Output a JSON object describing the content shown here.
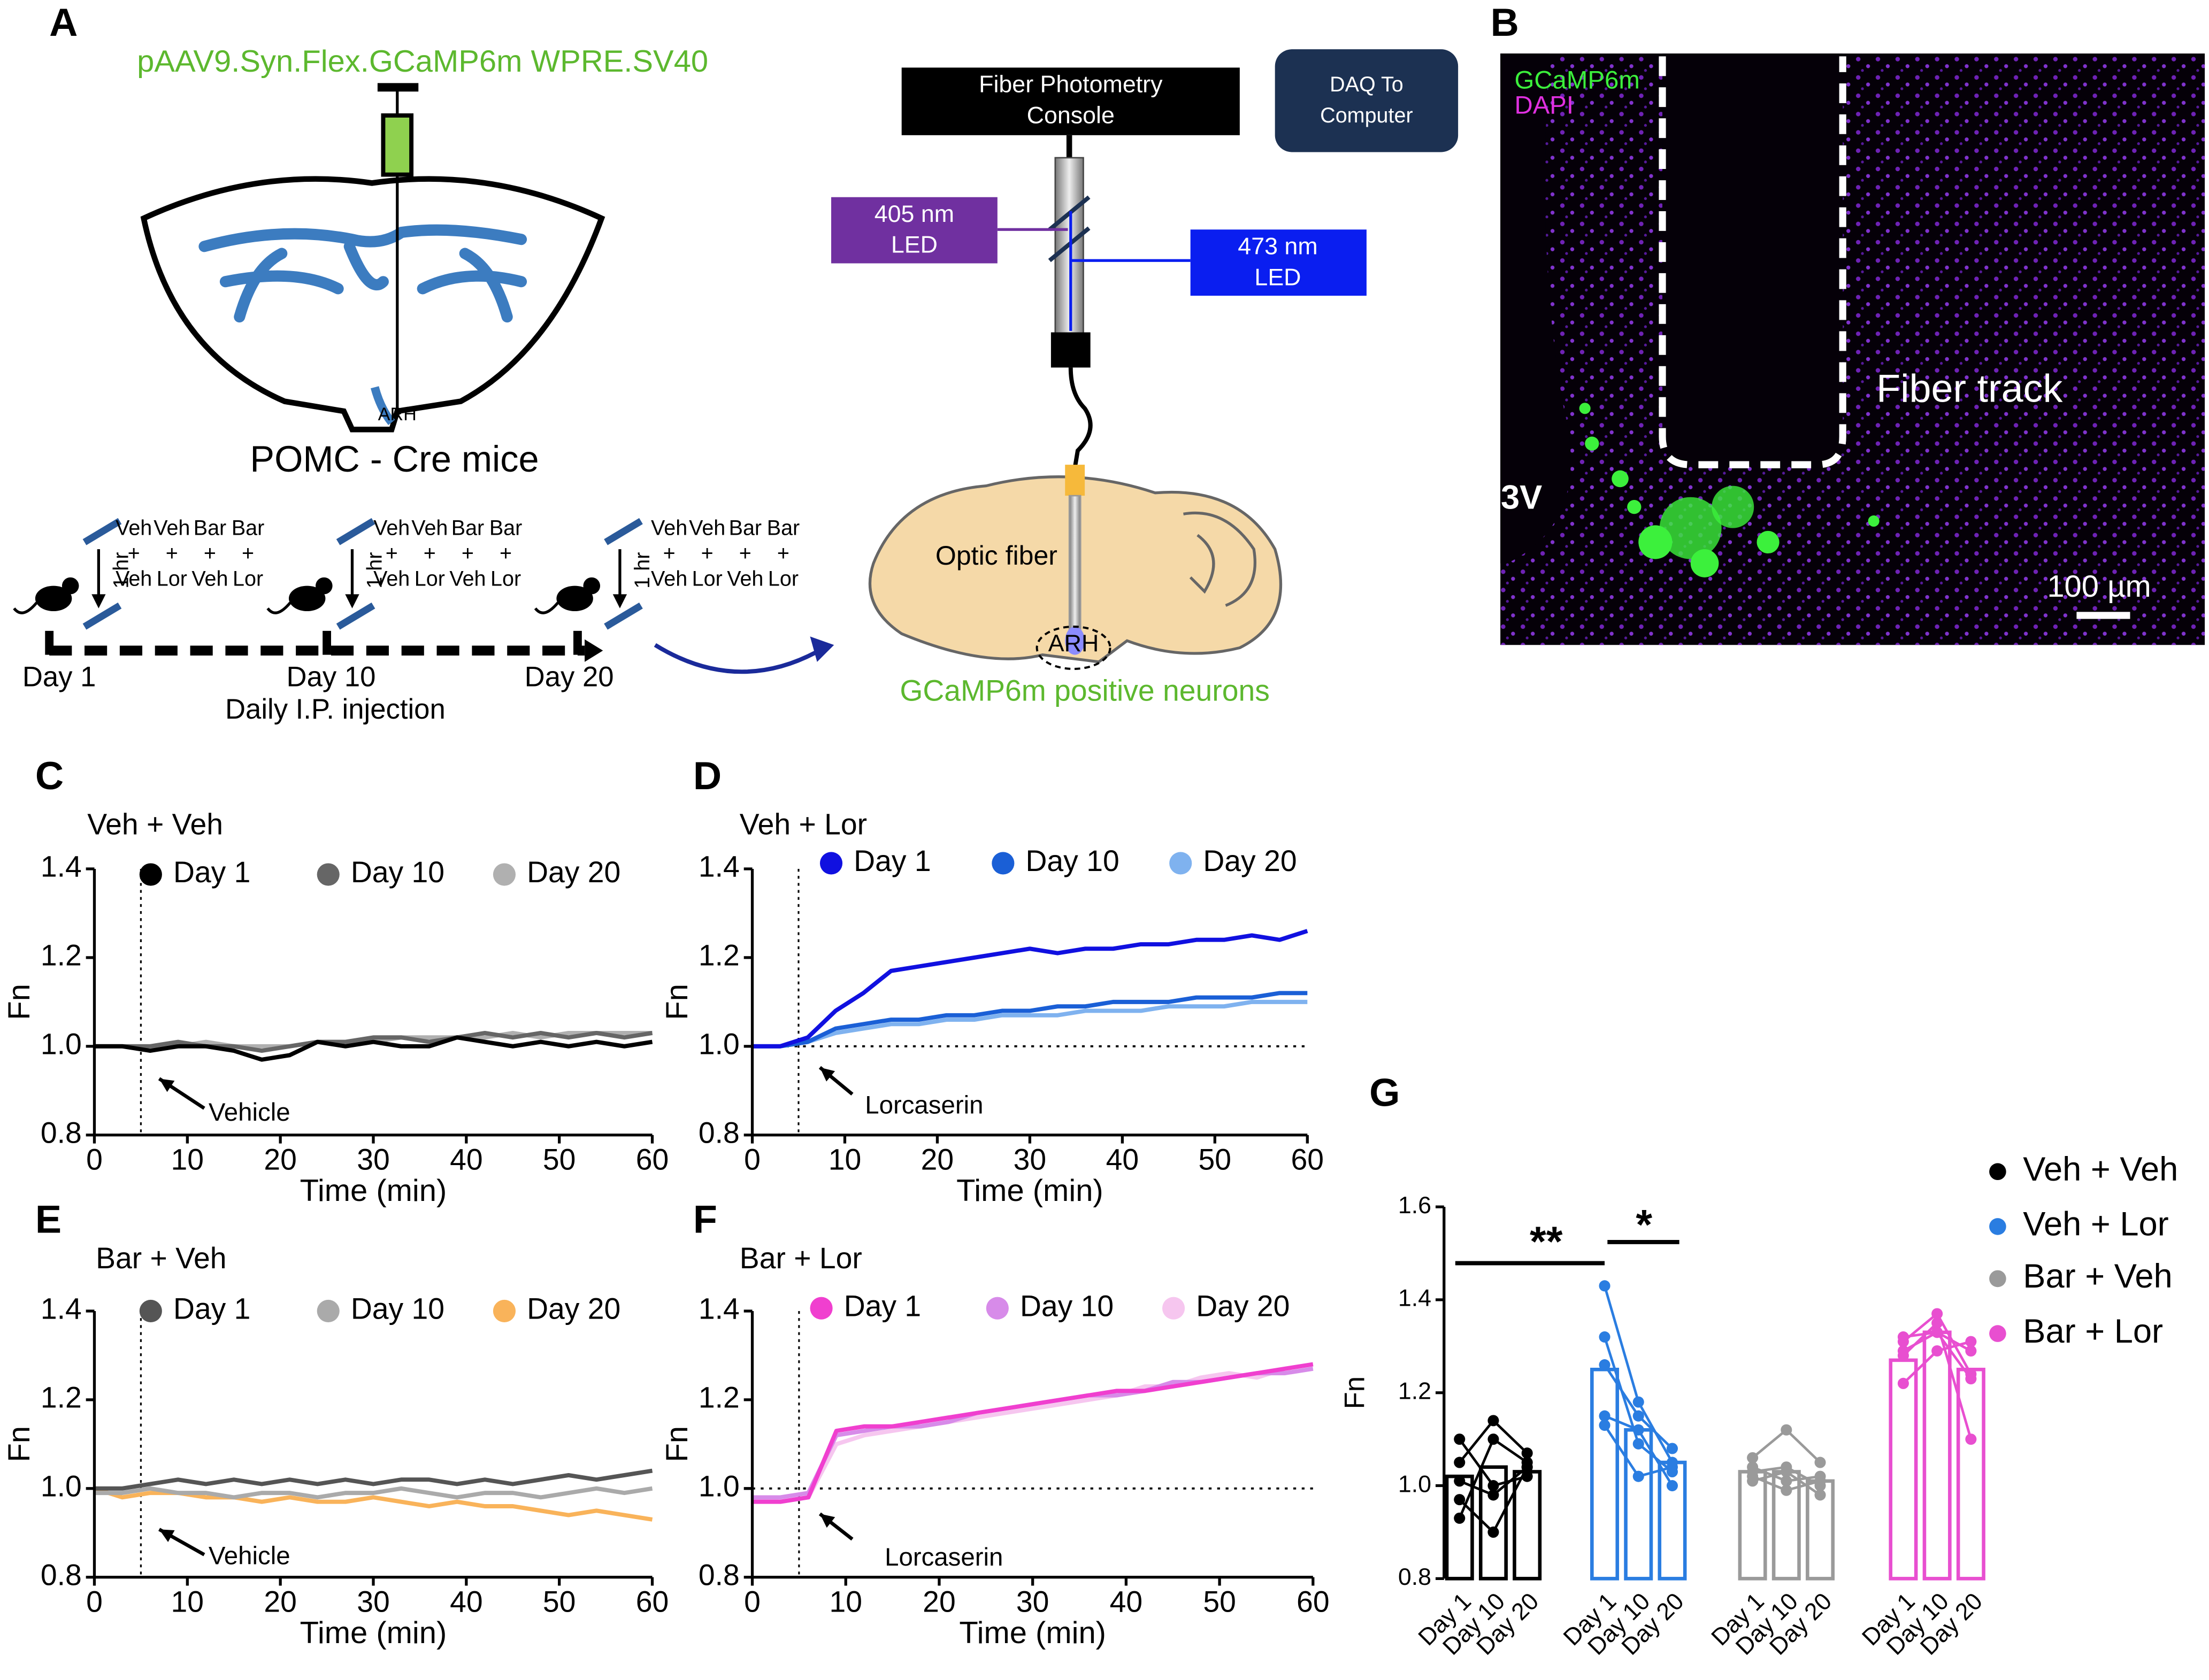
{
  "diagram": {
    "panel": "A",
    "virus": "pAAV9.Syn.Flex.GCaMP6m WPRE.SV40",
    "arh": "ARH",
    "mice": "POMC - Cre mice",
    "treatments_top": [
      "Veh",
      "Veh",
      "Bar",
      "Bar"
    ],
    "plus": "+",
    "treatments_bottom": [
      "Veh",
      "Lor",
      "Veh",
      "Lor"
    ],
    "interval": "1 hr",
    "days": [
      "Day 1",
      "Day 10",
      "Day 20"
    ],
    "injection": "Daily I.P. injection",
    "console": [
      "Fiber Photometry",
      "Console"
    ],
    "daq": [
      "DAQ To",
      "Computer"
    ],
    "led405": [
      "405 nm",
      "LED"
    ],
    "led473": [
      "473 nm",
      "LED"
    ],
    "optic": "Optic fiber",
    "neurons": "GCaMP6m positive neurons"
  },
  "image": {
    "panel": "B",
    "gcamp": "GCaMP6m",
    "dapi": "DAPI",
    "fiber_track": "Fiber track",
    "ventricle": "3V",
    "scale": "100 µm"
  },
  "chart_data": [
    {
      "type": "line",
      "panel": "C",
      "title": "Veh + Veh",
      "x_label": "Time (min)",
      "y_label": "Fn",
      "annotation": "Vehicle",
      "marker_x": 5,
      "x": [
        0,
        3,
        6,
        9,
        12,
        15,
        18,
        21,
        24,
        27,
        30,
        33,
        36,
        39,
        42,
        45,
        48,
        51,
        54,
        57,
        60
      ],
      "xlim": [
        0,
        60
      ],
      "xticks": [
        0,
        10,
        20,
        30,
        40,
        50,
        60
      ],
      "ylim": [
        0.8,
        1.4
      ],
      "yticks": [
        0.8,
        {
          "value": 1,
          "label": "1.0"
        },
        1.2,
        1.4
      ],
      "series": [
        {
          "name": "Day 1",
          "color": "#000000",
          "values": [
            1.0,
            1.0,
            0.99,
            1.0,
            1.0,
            0.99,
            0.97,
            0.98,
            1.01,
            1.0,
            1.01,
            1.0,
            1.0,
            1.02,
            1.01,
            1.0,
            1.01,
            1.0,
            1.01,
            1.0,
            1.01
          ]
        },
        {
          "name": "Day 10",
          "color": "#666666",
          "values": [
            1.0,
            1.0,
            1.0,
            1.01,
            1.0,
            1.0,
            0.99,
            1.0,
            1.01,
            1.01,
            1.02,
            1.02,
            1.01,
            1.02,
            1.03,
            1.02,
            1.03,
            1.02,
            1.03,
            1.02,
            1.03
          ]
        },
        {
          "name": "Day 20",
          "color": "#b0b0b0",
          "values": [
            1.0,
            1.0,
            1.0,
            1.0,
            1.01,
            1.0,
            1.0,
            1.0,
            1.01,
            1.01,
            1.01,
            1.02,
            1.02,
            1.02,
            1.02,
            1.03,
            1.02,
            1.03,
            1.03,
            1.03,
            1.03
          ]
        }
      ]
    },
    {
      "type": "line",
      "panel": "D",
      "title": "Veh + Lor",
      "x_label": "Time (min)",
      "y_label": "Fn",
      "annotation": "Lorcaserin",
      "marker_x": 5,
      "reference_y": 1,
      "x": [
        0,
        3,
        6,
        9,
        12,
        15,
        18,
        21,
        24,
        27,
        30,
        33,
        36,
        39,
        42,
        45,
        48,
        51,
        54,
        57,
        60
      ],
      "xlim": [
        0,
        60
      ],
      "xticks": [
        0,
        10,
        20,
        30,
        40,
        50,
        60
      ],
      "ylim": [
        0.8,
        1.4
      ],
      "yticks": [
        0.8,
        {
          "value": 1,
          "label": "1.0"
        },
        1.2,
        1.4
      ],
      "series": [
        {
          "name": "Day 1",
          "color": "#1010e0",
          "values": [
            1.0,
            1.0,
            1.02,
            1.08,
            1.12,
            1.17,
            1.18,
            1.19,
            1.2,
            1.21,
            1.22,
            1.21,
            1.22,
            1.22,
            1.23,
            1.23,
            1.24,
            1.24,
            1.25,
            1.24,
            1.26
          ]
        },
        {
          "name": "Day 10",
          "color": "#1a5fd6",
          "values": [
            1.0,
            1.0,
            1.01,
            1.04,
            1.05,
            1.06,
            1.06,
            1.07,
            1.07,
            1.08,
            1.08,
            1.09,
            1.09,
            1.1,
            1.1,
            1.1,
            1.11,
            1.11,
            1.11,
            1.12,
            1.12
          ]
        },
        {
          "name": "Day 20",
          "color": "#7fb2ef",
          "values": [
            1.0,
            1.0,
            1.01,
            1.03,
            1.04,
            1.05,
            1.05,
            1.06,
            1.06,
            1.07,
            1.07,
            1.07,
            1.08,
            1.08,
            1.08,
            1.09,
            1.09,
            1.09,
            1.1,
            1.1,
            1.1
          ]
        }
      ]
    },
    {
      "type": "line",
      "panel": "E",
      "title": "Bar + Veh",
      "x_label": "Time (min)",
      "y_label": "Fn",
      "annotation": "Vehicle",
      "marker_x": 5,
      "x": [
        0,
        3,
        6,
        9,
        12,
        15,
        18,
        21,
        24,
        27,
        30,
        33,
        36,
        39,
        42,
        45,
        48,
        51,
        54,
        57,
        60
      ],
      "xlim": [
        0,
        60
      ],
      "xticks": [
        0,
        10,
        20,
        30,
        40,
        50,
        60
      ],
      "ylim": [
        0.8,
        1.4
      ],
      "yticks": [
        0.8,
        {
          "value": 1,
          "label": "1.0"
        },
        1.2,
        1.4
      ],
      "series": [
        {
          "name": "Day 1",
          "color": "#555555",
          "values": [
            1.0,
            1.0,
            1.01,
            1.02,
            1.01,
            1.02,
            1.01,
            1.02,
            1.01,
            1.02,
            1.01,
            1.02,
            1.02,
            1.01,
            1.02,
            1.01,
            1.02,
            1.03,
            1.02,
            1.03,
            1.04
          ]
        },
        {
          "name": "Day 10",
          "color": "#aaaaaa",
          "values": [
            0.99,
            0.99,
            1.0,
            0.99,
            0.99,
            0.98,
            0.99,
            0.99,
            0.98,
            0.99,
            0.99,
            1.0,
            0.99,
            0.98,
            0.99,
            0.99,
            0.98,
            0.99,
            1.0,
            0.99,
            1.0
          ]
        },
        {
          "name": "Day 20",
          "color": "#f9b35a",
          "values": [
            1.0,
            0.98,
            0.99,
            0.99,
            0.98,
            0.98,
            0.97,
            0.98,
            0.97,
            0.97,
            0.98,
            0.97,
            0.96,
            0.97,
            0.96,
            0.96,
            0.95,
            0.94,
            0.95,
            0.94,
            0.93
          ]
        }
      ]
    },
    {
      "type": "line",
      "panel": "F",
      "title": "Bar + Lor",
      "x_label": "Time (min)",
      "y_label": "Fn",
      "annotation": "Lorcaserin",
      "marker_x": 5,
      "reference_y": 1,
      "x": [
        0,
        3,
        6,
        9,
        12,
        15,
        18,
        21,
        24,
        27,
        30,
        33,
        36,
        39,
        42,
        45,
        48,
        51,
        54,
        57,
        60
      ],
      "xlim": [
        0,
        60
      ],
      "xticks": [
        0,
        10,
        20,
        30,
        40,
        50,
        60
      ],
      "ylim": [
        0.8,
        1.4
      ],
      "yticks": [
        0.8,
        {
          "value": 1,
          "label": "1.0"
        },
        1.2,
        1.4
      ],
      "series": [
        {
          "name": "Day 1",
          "color": "#f03fcf",
          "values": [
            0.97,
            0.97,
            0.98,
            1.13,
            1.14,
            1.14,
            1.15,
            1.16,
            1.17,
            1.18,
            1.19,
            1.2,
            1.21,
            1.22,
            1.22,
            1.23,
            1.24,
            1.25,
            1.26,
            1.27,
            1.28
          ]
        },
        {
          "name": "Day 10",
          "color": "#d78be9",
          "values": [
            0.98,
            0.98,
            0.99,
            1.12,
            1.13,
            1.14,
            1.14,
            1.15,
            1.17,
            1.18,
            1.19,
            1.2,
            1.21,
            1.21,
            1.22,
            1.24,
            1.24,
            1.25,
            1.26,
            1.26,
            1.27
          ]
        },
        {
          "name": "Day 20",
          "color": "#f6c6ef",
          "values": [
            0.98,
            0.97,
            0.98,
            1.1,
            1.12,
            1.13,
            1.14,
            1.15,
            1.16,
            1.17,
            1.18,
            1.19,
            1.2,
            1.21,
            1.23,
            1.23,
            1.25,
            1.26,
            1.25,
            1.27,
            1.28
          ]
        }
      ]
    },
    {
      "type": "bar",
      "panel": "G",
      "y_label": "Fn",
      "categories": [
        "Day 1",
        "Day 10",
        "Day 20"
      ],
      "ylim": [
        0.8,
        1.6
      ],
      "yticks": [
        0.8,
        {
          "value": 1,
          "label": "1.0"
        },
        1.2,
        1.4,
        1.6
      ],
      "significance": [
        {
          "text": "**"
        },
        {
          "text": "*"
        }
      ],
      "series": [
        {
          "name": "Veh + Veh",
          "color": "#000000",
          "values": [
            1.02,
            1.04,
            1.03
          ],
          "subjects": [
            [
              0.93,
              1.1,
              1.05
            ],
            [
              0.97,
              0.9,
              1.04
            ],
            [
              1.05,
              1.14,
              1.07
            ],
            [
              1.1,
              1.0,
              1.02
            ],
            [
              1.01,
              0.98,
              1.04
            ]
          ]
        },
        {
          "name": "Veh + Lor",
          "color": "#2a7de1",
          "values": [
            1.25,
            1.12,
            1.05
          ],
          "subjects": [
            [
              1.43,
              1.18,
              1.05
            ],
            [
              1.32,
              1.09,
              1.03
            ],
            [
              1.26,
              1.15,
              1.08
            ],
            [
              1.15,
              1.12,
              1.0
            ],
            [
              1.13,
              1.02,
              1.04
            ]
          ]
        },
        {
          "name": "Bar + Veh",
          "color": "#9a9a9a",
          "values": [
            1.03,
            1.03,
            1.01
          ],
          "subjects": [
            [
              1.06,
              1.12,
              1.05
            ],
            [
              1.03,
              1.04,
              1.0
            ],
            [
              1.02,
              0.99,
              1.01
            ],
            [
              1.01,
              1.03,
              0.98
            ],
            [
              1.04,
              1.01,
              1.02
            ]
          ]
        },
        {
          "name": "Bar + Lor",
          "color": "#e84fd0",
          "values": [
            1.27,
            1.33,
            1.25
          ],
          "subjects": [
            [
              1.31,
              1.37,
              1.24
            ],
            [
              1.28,
              1.35,
              1.1
            ],
            [
              1.32,
              1.33,
              1.29
            ],
            [
              1.22,
              1.29,
              1.31
            ],
            [
              1.29,
              1.33,
              1.23
            ]
          ]
        }
      ]
    }
  ]
}
